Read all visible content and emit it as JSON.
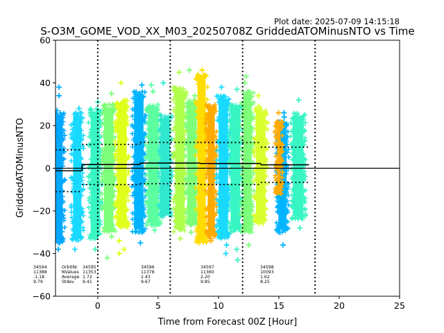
{
  "header": {
    "plot_date": "Plot date: 2025-07-09 14:15:18"
  },
  "chart_data": {
    "type": "scatter",
    "title": "S-O3M_GOME_VOD_XX_M03_20250708Z GriddedATOMinusNTO vs Time",
    "xlabel": "Time from Forecast 00Z [Hour]",
    "ylabel": "GriddedATOMinusNTO",
    "xlim": [
      -3.5,
      25
    ],
    "ylim": [
      -60,
      60
    ],
    "xticks": [
      0,
      5,
      10,
      15,
      20,
      25
    ],
    "yticks": [
      -60,
      -40,
      -20,
      0,
      20,
      40,
      60
    ],
    "grid": false,
    "vertical_dotted_lines": [
      0,
      6,
      12,
      18
    ],
    "zero_line": 0,
    "orbit_table": {
      "row_labels": [
        "OrbitNr",
        "NValues",
        "Average",
        "Stdev"
      ],
      "orbits": [
        {
          "orbit": "34594",
          "nvalues": "11388",
          "average": "-1.18",
          "stdev": "9.79"
        },
        {
          "orbit": "34595",
          "nvalues": "11353",
          "average": "1.72",
          "stdev": "9.41"
        },
        {
          "orbit": "34596",
          "nvalues": "11378",
          "average": "2.43",
          "stdev": "9.67"
        },
        {
          "orbit": "34597",
          "nvalues": "11360",
          "average": "2.20",
          "stdev": "9.85"
        },
        {
          "orbit": "34598",
          "nvalues": "10093",
          "average": "1.62",
          "stdev": "8.25"
        }
      ]
    },
    "series": [
      {
        "type": "average_line",
        "segments": [
          {
            "x": [
              -3.5,
              -1.3
            ],
            "y": -1.18
          },
          {
            "x": [
              -1.3,
              3.5
            ],
            "y": 1.72
          },
          {
            "x": [
              3.5,
              8.5
            ],
            "y": 2.43
          },
          {
            "x": [
              8.5,
              13.5
            ],
            "y": 2.2
          },
          {
            "x": [
              13.5,
              17.5
            ],
            "y": 1.62
          }
        ]
      },
      {
        "type": "plus_minus_stdev_dotted",
        "segments": [
          {
            "x": [
              -3.5,
              -1.3
            ],
            "upper": 8.61,
            "lower": -10.97
          },
          {
            "x": [
              -1.3,
              3.5
            ],
            "upper": 11.13,
            "lower": -7.69
          },
          {
            "x": [
              3.5,
              8.5
            ],
            "upper": 12.1,
            "lower": -7.24
          },
          {
            "x": [
              8.5,
              13.5
            ],
            "upper": 12.05,
            "lower": -7.65
          },
          {
            "x": [
              13.5,
              17.5
            ],
            "upper": 9.87,
            "lower": -6.63
          }
        ]
      }
    ],
    "scatter_bands": [
      {
        "x_center": -3.2,
        "width": 0.7,
        "ymin": -35,
        "ymax": 26,
        "color": "#00a8ff",
        "outliers": [
          38,
          34,
          27,
          -38,
          -35
        ]
      },
      {
        "x_center": -1.7,
        "width": 0.8,
        "ymin": -34,
        "ymax": 26,
        "color": "#19d9ff",
        "outliers": [
          28,
          -38
        ]
      },
      {
        "x_center": -0.2,
        "width": 0.9,
        "ymin": -33,
        "ymax": 28,
        "color": "#38f5c4",
        "outliers": [
          31,
          -38,
          -32
        ]
      },
      {
        "x_center": 0.9,
        "width": 0.9,
        "ymin": -30,
        "ymax": 30,
        "color": "#7dff7a",
        "outliers": [
          35,
          -42,
          -32
        ]
      },
      {
        "x_center": 2.0,
        "width": 0.9,
        "ymin": -28,
        "ymax": 32,
        "color": "#e0ff1a",
        "outliers": [
          40,
          -40,
          -38,
          -34
        ]
      },
      {
        "x_center": 3.4,
        "width": 0.9,
        "ymin": -30,
        "ymax": 36,
        "color": "#00b4ff",
        "outliers": [
          39,
          -35,
          -30
        ]
      },
      {
        "x_center": 4.6,
        "width": 1.0,
        "ymin": -27,
        "ymax": 30,
        "color": "#5cffa0",
        "outliers": [
          36,
          39,
          -29
        ]
      },
      {
        "x_center": 5.6,
        "width": 0.9,
        "ymin": -23,
        "ymax": 25,
        "color": "#30e8d0",
        "outliers": [
          40,
          -21
        ]
      },
      {
        "x_center": 6.8,
        "width": 0.9,
        "ymin": -30,
        "ymax": 38,
        "color": "#b0ff4a",
        "outliers": [
          45,
          -33
        ]
      },
      {
        "x_center": 7.8,
        "width": 0.9,
        "ymin": -27,
        "ymax": 32,
        "color": "#7dff7a",
        "outliers": [
          46,
          34,
          -30
        ]
      },
      {
        "x_center": 8.6,
        "width": 0.8,
        "ymin": -35,
        "ymax": 44,
        "color": "#ffdd00",
        "outliers": [
          46,
          -35
        ]
      },
      {
        "x_center": 9.4,
        "width": 0.7,
        "ymin": -32,
        "ymax": 30,
        "color": "#ffaa00",
        "outliers": [
          -33,
          -34
        ]
      },
      {
        "x_center": 10.4,
        "width": 0.9,
        "ymin": -33,
        "ymax": 34,
        "color": "#19d9ff",
        "outliers": [
          38,
          -36,
          -40
        ]
      },
      {
        "x_center": 11.4,
        "width": 0.9,
        "ymin": -30,
        "ymax": 30,
        "color": "#38f5c4",
        "outliers": [
          37,
          -38,
          -43
        ]
      },
      {
        "x_center": 12.4,
        "width": 0.8,
        "ymin": -30,
        "ymax": 36,
        "color": "#7dff7a",
        "outliers": [
          43,
          40,
          -36
        ]
      },
      {
        "x_center": 13.5,
        "width": 0.9,
        "ymin": -26,
        "ymax": 28,
        "color": "#d9ff2e",
        "outliers": [
          34,
          29,
          -26
        ]
      },
      {
        "x_center": 15.3,
        "width": 0.8,
        "ymin": -30,
        "ymax": 22,
        "color": "#00b4ff",
        "outliers": [
          26,
          24,
          -36,
          -30
        ]
      },
      {
        "x_center": 15.0,
        "width": 0.4,
        "ymin": -12,
        "ymax": 22,
        "color": "#ffaa00",
        "outliers": [
          26
        ]
      },
      {
        "x_center": 16.6,
        "width": 1.0,
        "ymin": -24,
        "ymax": 26,
        "color": "#38f5c4",
        "outliers": [
          32,
          -28
        ]
      }
    ]
  }
}
